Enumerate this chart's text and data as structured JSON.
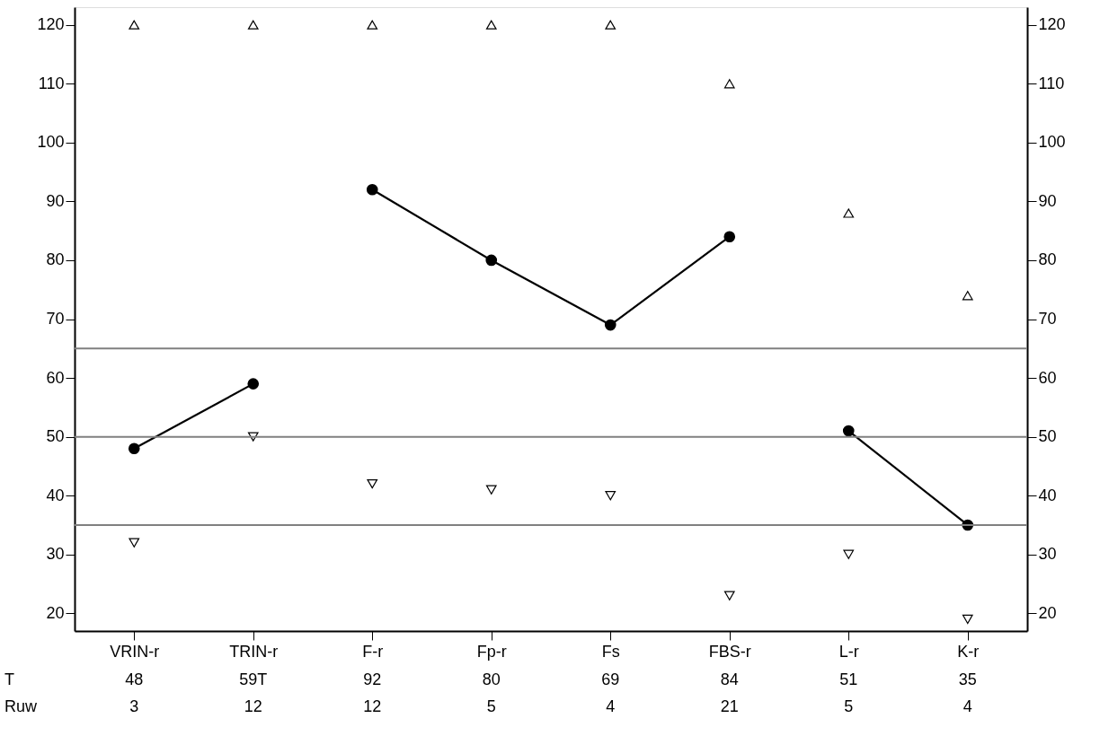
{
  "chart_data": {
    "type": "line",
    "categories": [
      "VRIN-r",
      "TRIN-r",
      "F-r",
      "Fp-r",
      "Fs",
      "FBS-r",
      "L-r",
      "K-r"
    ],
    "series": [
      {
        "color": "#000000",
        "values": [
          48,
          59,
          null,
          null,
          null,
          null,
          null,
          null
        ]
      },
      {
        "color": "#000000",
        "values": [
          null,
          null,
          92,
          80,
          69,
          84,
          null,
          null
        ]
      },
      {
        "color": "#000000",
        "values": [
          null,
          null,
          null,
          null,
          null,
          null,
          51,
          35
        ]
      },
      {
        "type": "scatter",
        "marker": "triangle",
        "color": "#000000",
        "values": [
          120,
          120,
          120,
          120,
          120,
          110,
          88,
          74
        ]
      },
      {
        "type": "scatter",
        "marker": "triangle",
        "color": "#000000",
        "values": [
          32,
          50,
          42,
          41,
          40,
          23,
          30,
          19
        ]
      }
    ],
    "marker": "circle",
    "line_style": "solid",
    "value_labels": [
      "48",
      "59T",
      "92",
      "80",
      "69",
      "84",
      "51",
      "35"
    ],
    "annotations": [
      "T",
      "Ruw",
      "3",
      "12",
      "12",
      "5",
      "4",
      "21",
      "5",
      "4"
    ],
    "ref_lines": [
      {
        "axis": "y",
        "value": 35,
        "color": "#808080"
      },
      {
        "axis": "y",
        "value": 50,
        "color": "#808080"
      },
      {
        "axis": "y",
        "value": 65,
        "color": "#808080"
      }
    ],
    "ylim": [
      17,
      123
    ],
    "yticks": [
      20,
      30,
      40,
      50,
      60,
      70,
      80,
      90,
      100,
      110,
      120
    ],
    "y2lim": [
      17,
      123
    ],
    "y2ticks": [
      20,
      30,
      40,
      50,
      60,
      70,
      80,
      90,
      100,
      110,
      120
    ],
    "grid": false
  }
}
